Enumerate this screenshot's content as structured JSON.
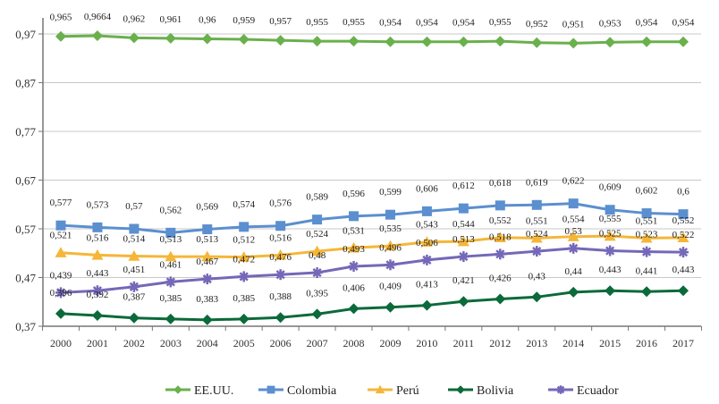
{
  "chart_data": {
    "type": "line",
    "title": "",
    "xlabel": "",
    "ylabel": "",
    "x": [
      "2000",
      "2001",
      "2002",
      "2003",
      "2004",
      "2005",
      "2006",
      "2007",
      "2008",
      "2009",
      "2010",
      "2011",
      "2012",
      "2013",
      "2014",
      "2015",
      "2016",
      "2017"
    ],
    "ylim": [
      0.37,
      0.97
    ],
    "yticks": [
      0.37,
      0.47,
      0.57,
      0.67,
      0.77,
      0.87,
      0.97
    ],
    "ytick_labels": [
      "0,37",
      "0,47",
      "0,57",
      "0,67",
      "0,77",
      "0,87",
      "0,97"
    ],
    "grid": "horizontal",
    "legend_position": "bottom",
    "series": [
      {
        "name": "EE.UU.",
        "color": "#6ab04c",
        "marker": "diamond",
        "values": [
          0.965,
          0.9664,
          0.962,
          0.961,
          0.96,
          0.959,
          0.957,
          0.955,
          0.955,
          0.954,
          0.954,
          0.954,
          0.955,
          0.952,
          0.951,
          0.953,
          0.954,
          0.954
        ],
        "labels": [
          "0,965",
          "0,9664",
          "0,962",
          "0,961",
          "0,96",
          "0,959",
          "0,957",
          "0,955",
          "0,955",
          "0,954",
          "0,954",
          "0,954",
          "0,955",
          "0,952",
          "0,951",
          "0,953",
          "0,954",
          "0,954"
        ]
      },
      {
        "name": "Colombia",
        "color": "#5b8fcf",
        "marker": "square",
        "values": [
          0.577,
          0.573,
          0.57,
          0.562,
          0.569,
          0.574,
          0.576,
          0.589,
          0.596,
          0.599,
          0.606,
          0.612,
          0.618,
          0.619,
          0.622,
          0.609,
          0.602,
          0.6
        ],
        "labels": [
          "0,577",
          "0,573",
          "0,57",
          "0,562",
          "0,569",
          "0,574",
          "0,576",
          "0,589",
          "0,596",
          "0,599",
          "0,606",
          "0,612",
          "0,618",
          "0,619",
          "0,622",
          "0,609",
          "0,602",
          "0,6"
        ]
      },
      {
        "name": "Perú",
        "color": "#f5b638",
        "marker": "triangle",
        "values": [
          0.521,
          0.516,
          0.514,
          0.513,
          0.513,
          0.512,
          0.516,
          0.524,
          0.531,
          0.535,
          0.543,
          0.544,
          0.552,
          0.551,
          0.554,
          0.555,
          0.551,
          0.552
        ],
        "labels": [
          "0,521",
          "0,516",
          "0,514",
          "0,513",
          "0,513",
          "0,512",
          "0,516",
          "0,524",
          "0,531",
          "0,535",
          "0,543",
          "0,544",
          "0,552",
          "0,551",
          "0,554",
          "0,555",
          "0,551",
          "0,552"
        ]
      },
      {
        "name": "Bolivia",
        "color": "#0b6a3a",
        "marker": "diamond",
        "values": [
          0.396,
          0.392,
          0.387,
          0.385,
          0.383,
          0.385,
          0.388,
          0.395,
          0.406,
          0.409,
          0.413,
          0.421,
          0.426,
          0.43,
          0.44,
          0.443,
          0.441,
          0.443
        ],
        "labels": [
          "0,396",
          "0,392",
          "0,387",
          "0,385",
          "0,383",
          "0,385",
          "0,388",
          "0,395",
          "0,406",
          "0,409",
          "0,413",
          "0,421",
          "0,426",
          "0,43",
          "0,44",
          "0,443",
          "0,441",
          "0,443"
        ]
      },
      {
        "name": "Ecuador",
        "color": "#7468b8",
        "marker": "asterisk",
        "values": [
          0.439,
          0.443,
          0.451,
          0.461,
          0.467,
          0.472,
          0.476,
          0.48,
          0.493,
          0.496,
          0.506,
          0.513,
          0.518,
          0.524,
          0.53,
          0.525,
          0.523,
          0.522
        ],
        "labels": [
          "0,439",
          "0,443",
          "0,451",
          "0,461",
          "0,467",
          "0,472",
          "0,476",
          "0,48",
          "0,493",
          "0,496",
          "0,506",
          "0,513",
          "0,518",
          "0,524",
          "0,53",
          "0,525",
          "0,523",
          "0,522"
        ]
      }
    ]
  }
}
